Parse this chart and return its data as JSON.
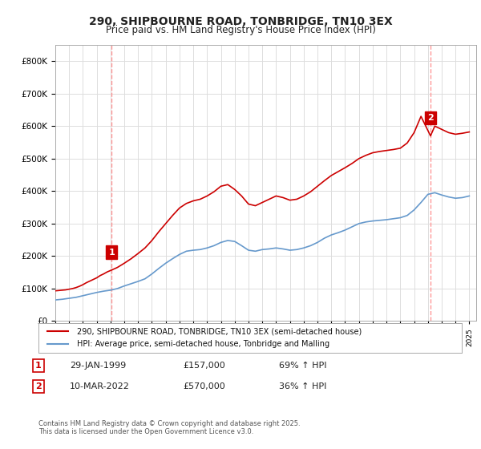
{
  "title": "290, SHIPBOURNE ROAD, TONBRIDGE, TN10 3EX",
  "subtitle": "Price paid vs. HM Land Registry's House Price Index (HPI)",
  "legend_line1": "290, SHIPBOURNE ROAD, TONBRIDGE, TN10 3EX (semi-detached house)",
  "legend_line2": "HPI: Average price, semi-detached house, Tonbridge and Malling",
  "annotation1_label": "1",
  "annotation1_date": "29-JAN-1999",
  "annotation1_price": "£157,000",
  "annotation1_hpi": "69% ↑ HPI",
  "annotation1_year": 1999.08,
  "annotation1_value": 157000,
  "annotation2_label": "2",
  "annotation2_date": "10-MAR-2022",
  "annotation2_price": "£570,000",
  "annotation2_hpi": "36% ↑ HPI",
  "annotation2_year": 2022.19,
  "annotation2_value": 570000,
  "line1_color": "#cc0000",
  "line2_color": "#6699cc",
  "vline_color": "#ff9999",
  "grid_color": "#dddddd",
  "bg_color": "#ffffff",
  "ylabel": "",
  "ylim_min": 0,
  "ylim_max": 850000,
  "note": "Contains HM Land Registry data © Crown copyright and database right 2025.\nThis data is licensed under the Open Government Licence v3.0.",
  "hpi_years": [
    1995.0,
    1995.5,
    1996.0,
    1996.5,
    1997.0,
    1997.5,
    1998.0,
    1998.5,
    1999.0,
    1999.5,
    2000.0,
    2000.5,
    2001.0,
    2001.5,
    2002.0,
    2002.5,
    2003.0,
    2003.5,
    2004.0,
    2004.5,
    2005.0,
    2005.5,
    2006.0,
    2006.5,
    2007.0,
    2007.5,
    2008.0,
    2008.5,
    2009.0,
    2009.5,
    2010.0,
    2010.5,
    2011.0,
    2011.5,
    2012.0,
    2012.5,
    2013.0,
    2013.5,
    2014.0,
    2014.5,
    2015.0,
    2015.5,
    2016.0,
    2016.5,
    2017.0,
    2017.5,
    2018.0,
    2018.5,
    2019.0,
    2019.5,
    2020.0,
    2020.5,
    2021.0,
    2021.5,
    2022.0,
    2022.5,
    2023.0,
    2023.5,
    2024.0,
    2024.5,
    2025.0
  ],
  "hpi_values": [
    65000,
    67000,
    70000,
    73000,
    78000,
    83000,
    88000,
    92000,
    95000,
    100000,
    108000,
    115000,
    122000,
    130000,
    145000,
    162000,
    178000,
    192000,
    205000,
    215000,
    218000,
    220000,
    225000,
    232000,
    242000,
    248000,
    245000,
    232000,
    218000,
    215000,
    220000,
    222000,
    225000,
    222000,
    218000,
    220000,
    225000,
    232000,
    242000,
    255000,
    265000,
    272000,
    280000,
    290000,
    300000,
    305000,
    308000,
    310000,
    312000,
    315000,
    318000,
    325000,
    342000,
    365000,
    390000,
    395000,
    388000,
    382000,
    378000,
    380000,
    385000
  ],
  "price_years": [
    1995.0,
    1995.25,
    1995.5,
    1995.75,
    1996.0,
    1996.25,
    1996.5,
    1996.75,
    1997.0,
    1997.25,
    1997.5,
    1997.75,
    1998.0,
    1998.25,
    1998.5,
    1998.75,
    1999.08,
    1999.5,
    2000.0,
    2000.5,
    2001.0,
    2001.5,
    2002.0,
    2002.5,
    2003.0,
    2003.5,
    2004.0,
    2004.5,
    2005.0,
    2005.5,
    2006.0,
    2006.5,
    2007.0,
    2007.5,
    2008.0,
    2008.5,
    2009.0,
    2009.5,
    2010.0,
    2010.5,
    2011.0,
    2011.5,
    2012.0,
    2012.5,
    2013.0,
    2013.5,
    2014.0,
    2014.5,
    2015.0,
    2015.5,
    2016.0,
    2016.5,
    2017.0,
    2017.5,
    2018.0,
    2018.5,
    2019.0,
    2019.5,
    2020.0,
    2020.5,
    2021.0,
    2021.5,
    2022.19,
    2022.5,
    2023.0,
    2023.5,
    2024.0,
    2024.5,
    2025.0
  ],
  "price_values": [
    93000,
    94000,
    95000,
    96000,
    98000,
    100000,
    103000,
    107000,
    112000,
    118000,
    123000,
    128000,
    133000,
    140000,
    145000,
    151000,
    157000,
    165000,
    178000,
    192000,
    208000,
    225000,
    248000,
    275000,
    300000,
    325000,
    348000,
    362000,
    370000,
    375000,
    385000,
    398000,
    415000,
    420000,
    405000,
    385000,
    360000,
    355000,
    365000,
    375000,
    385000,
    380000,
    372000,
    375000,
    385000,
    398000,
    415000,
    432000,
    448000,
    460000,
    472000,
    485000,
    500000,
    510000,
    518000,
    522000,
    525000,
    528000,
    532000,
    548000,
    580000,
    630000,
    570000,
    600000,
    590000,
    580000,
    575000,
    578000,
    582000
  ]
}
